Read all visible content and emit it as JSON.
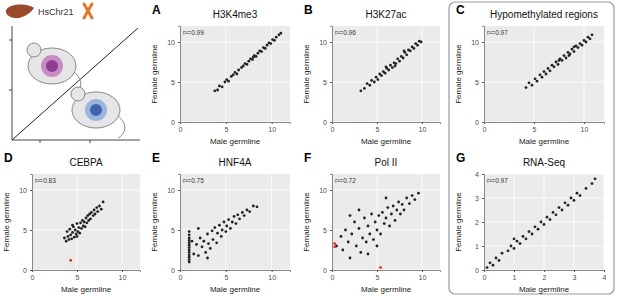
{
  "schematic": {
    "label": "HsChr21"
  },
  "chart_data": [
    {
      "type": "scatter",
      "panel": "A",
      "title": "H3K4me3",
      "annotation": "r²=0.99",
      "x_label": "Male germline",
      "y_label": "Female germline",
      "xlim": [
        0,
        12
      ],
      "ylim": [
        0,
        12
      ],
      "xticks": [
        0,
        5,
        10
      ],
      "yticks": [
        0,
        5,
        10
      ],
      "grid": true,
      "marker": "circle",
      "series": [
        {
          "color": "#222222",
          "x": [
            3.8,
            4.1,
            4.3,
            4.6,
            4.9,
            5.1,
            5.3,
            5.6,
            5.8,
            6.0,
            6.2,
            6.4,
            6.7,
            6.9,
            7.1,
            7.3,
            7.5,
            7.7,
            7.9,
            8.1,
            8.3,
            8.5,
            8.7,
            8.9,
            9.1,
            9.3,
            9.5,
            9.7,
            9.9,
            10.1,
            10.3,
            10.5,
            10.8,
            11.0,
            8.0
          ],
          "values": [
            3.9,
            4.0,
            4.5,
            4.4,
            5.0,
            5.3,
            5.1,
            5.7,
            5.9,
            6.2,
            6.0,
            6.5,
            6.8,
            7.0,
            7.3,
            7.2,
            7.6,
            7.9,
            7.8,
            8.3,
            8.2,
            8.6,
            8.9,
            8.8,
            9.3,
            9.2,
            9.6,
            9.9,
            9.8,
            10.3,
            10.2,
            10.6,
            10.9,
            11.1,
            8.1
          ]
        }
      ]
    },
    {
      "type": "scatter",
      "panel": "B",
      "title": "H3K27ac",
      "annotation": "r²=0.96",
      "x_label": "Male germline",
      "y_label": "Female germline",
      "xlim": [
        0,
        12
      ],
      "ylim": [
        0,
        12
      ],
      "xticks": [
        0,
        5,
        10
      ],
      "yticks": [
        0,
        5,
        10
      ],
      "grid": true,
      "marker": "circle",
      "series": [
        {
          "color": "#222222",
          "x": [
            3.2,
            3.6,
            3.9,
            4.2,
            4.4,
            4.7,
            4.9,
            5.1,
            5.3,
            5.5,
            5.7,
            5.9,
            6.1,
            6.3,
            6.5,
            6.7,
            6.9,
            7.1,
            7.3,
            7.5,
            7.7,
            7.9,
            8.1,
            8.3,
            8.5,
            8.7,
            8.9,
            9.1,
            9.3,
            9.5,
            9.7,
            9.9,
            6.0,
            7.0,
            8.0
          ],
          "values": [
            3.9,
            4.2,
            4.8,
            4.6,
            5.2,
            5.0,
            5.6,
            5.3,
            6.0,
            5.8,
            6.3,
            6.1,
            6.7,
            6.5,
            7.1,
            6.8,
            7.4,
            7.3,
            7.9,
            7.6,
            8.2,
            8.0,
            8.7,
            8.4,
            9.0,
            8.9,
            9.4,
            9.2,
            9.8,
            9.6,
            10.1,
            10.0,
            6.9,
            7.0,
            8.9
          ]
        }
      ]
    },
    {
      "type": "scatter",
      "panel": "C",
      "title": "Hypomethylated regions",
      "annotation": "r²=0.97",
      "x_label": "Male germline",
      "y_label": "Female germline",
      "xlim": [
        0,
        12
      ],
      "ylim": [
        0,
        12
      ],
      "xticks": [
        0,
        5,
        10
      ],
      "yticks": [
        0,
        5,
        10
      ],
      "grid": true,
      "marker": "circle",
      "series": [
        {
          "color": "#222222",
          "x": [
            4.2,
            4.5,
            4.8,
            5.1,
            5.3,
            5.6,
            5.8,
            6.0,
            6.2,
            6.4,
            6.6,
            6.8,
            7.0,
            7.2,
            7.4,
            7.6,
            7.8,
            8.0,
            8.2,
            8.4,
            8.6,
            8.8,
            9.0,
            9.2,
            9.4,
            9.6,
            9.8,
            10.0,
            10.2,
            10.4,
            10.6,
            10.8,
            9.0,
            8.5,
            7.5
          ],
          "values": [
            4.3,
            4.9,
            4.6,
            5.4,
            5.1,
            5.9,
            5.6,
            6.3,
            6.0,
            6.7,
            6.4,
            7.1,
            6.9,
            7.5,
            7.2,
            7.9,
            7.7,
            8.3,
            8.0,
            8.7,
            8.5,
            9.1,
            8.8,
            9.5,
            9.3,
            9.8,
            9.6,
            10.2,
            10.0,
            10.6,
            10.4,
            10.9,
            9.4,
            8.3,
            7.7
          ]
        }
      ]
    },
    {
      "type": "scatter",
      "panel": "D",
      "title": "CEBPA",
      "annotation": "r²=0.83",
      "x_label": "Male germline",
      "y_label": "Female germline",
      "xlim": [
        0,
        12
      ],
      "ylim": [
        0,
        12
      ],
      "xticks": [
        0,
        5,
        10
      ],
      "yticks": [
        0,
        5,
        10
      ],
      "grid": true,
      "marker": "circle",
      "series": [
        {
          "color": "#222222",
          "x": [
            3.6,
            3.8,
            3.9,
            4.0,
            4.1,
            4.2,
            4.3,
            4.4,
            4.5,
            4.6,
            4.7,
            4.8,
            4.9,
            5.0,
            5.1,
            5.2,
            5.3,
            5.4,
            5.5,
            5.6,
            5.7,
            5.8,
            5.9,
            6.0,
            6.1,
            6.2,
            6.3,
            6.4,
            6.5,
            6.6,
            6.8,
            6.9,
            7.0,
            7.2,
            7.3,
            7.5,
            7.7,
            7.9,
            5.0,
            4.5
          ],
          "values": [
            4.0,
            3.6,
            4.8,
            4.2,
            3.8,
            5.1,
            4.4,
            3.9,
            4.7,
            5.4,
            4.1,
            5.0,
            4.5,
            5.8,
            4.8,
            5.3,
            4.6,
            5.9,
            5.2,
            6.2,
            5.5,
            6.0,
            5.4,
            6.5,
            5.9,
            6.8,
            6.2,
            7.0,
            6.4,
            7.2,
            6.8,
            7.5,
            7.0,
            7.8,
            7.3,
            8.0,
            7.6,
            8.5,
            4.2,
            5.6
          ]
        },
        {
          "color": "#e3262a",
          "x": [
            4.3
          ],
          "values": [
            1.2
          ]
        }
      ]
    },
    {
      "type": "scatter",
      "panel": "E",
      "title": "HNF4A",
      "annotation": "r²=0.75",
      "x_label": "Male germline",
      "y_label": "Female germline",
      "xlim": [
        0,
        12
      ],
      "ylim": [
        0,
        12
      ],
      "xticks": [
        0,
        5,
        10
      ],
      "yticks": [
        0,
        5,
        10
      ],
      "grid": true,
      "marker": "circle",
      "series": [
        {
          "color": "#222222",
          "x": [
            1.0,
            1.0,
            1.0,
            1.0,
            1.0,
            1.0,
            1.0,
            1.0,
            1.0,
            1.0,
            1.0,
            1.0,
            1.0,
            1.5,
            1.8,
            2.0,
            2.2,
            2.4,
            2.6,
            2.8,
            3.0,
            3.1,
            3.3,
            3.5,
            3.6,
            3.8,
            4.0,
            4.1,
            4.3,
            4.5,
            4.6,
            4.8,
            5.0,
            5.1,
            5.3,
            5.5,
            5.7,
            5.9,
            6.1,
            6.3,
            6.5,
            6.8,
            7.0,
            7.3,
            7.6,
            8.0,
            8.4,
            2.0,
            3.0,
            1.3
          ],
          "values": [
            1.0,
            1.3,
            1.6,
            1.9,
            2.2,
            2.5,
            2.8,
            3.1,
            3.4,
            3.7,
            4.0,
            4.4,
            4.8,
            2.0,
            3.2,
            1.8,
            4.0,
            2.9,
            3.6,
            2.2,
            4.5,
            3.3,
            2.7,
            4.9,
            3.8,
            5.3,
            3.4,
            4.6,
            5.6,
            4.2,
            5.0,
            6.0,
            4.8,
            5.5,
            6.3,
            5.2,
            6.0,
            6.7,
            5.8,
            6.9,
            6.4,
            7.2,
            6.8,
            7.5,
            7.3,
            8.0,
            7.9,
            5.2,
            1.5,
            3.6
          ]
        }
      ]
    },
    {
      "type": "scatter",
      "panel": "F",
      "title": "Pol II",
      "annotation": "r²=0.72",
      "x_label": "Male germline",
      "y_label": "Female germline",
      "xlim": [
        0,
        12
      ],
      "ylim": [
        0,
        12
      ],
      "xticks": [
        0,
        5,
        10
      ],
      "yticks": [
        0,
        5,
        10
      ],
      "grid": true,
      "marker": "circle",
      "series": [
        {
          "color": "#222222",
          "x": [
            0.5,
            1.0,
            1.2,
            1.5,
            1.8,
            2.0,
            2.2,
            2.5,
            2.7,
            3.0,
            3.2,
            3.4,
            3.6,
            3.8,
            4.0,
            4.2,
            4.4,
            4.6,
            4.8,
            5.0,
            5.2,
            5.4,
            5.6,
            5.8,
            6.0,
            6.2,
            6.4,
            6.6,
            6.8,
            7.0,
            7.2,
            7.4,
            7.6,
            7.8,
            8.0,
            8.3,
            8.6,
            8.9,
            9.2,
            9.6,
            3.0,
            5.0,
            6.0,
            2.0,
            4.0
          ],
          "values": [
            3.0,
            4.2,
            2.5,
            5.0,
            3.5,
            1.5,
            4.5,
            6.0,
            3.0,
            5.2,
            2.2,
            4.0,
            6.5,
            3.5,
            5.5,
            4.5,
            7.0,
            3.8,
            6.0,
            5.0,
            6.8,
            4.5,
            7.2,
            5.8,
            6.5,
            7.8,
            5.5,
            7.0,
            8.0,
            6.2,
            7.5,
            8.5,
            7.0,
            8.2,
            7.5,
            9.0,
            8.3,
            9.3,
            8.8,
            9.6,
            7.5,
            3.0,
            9.0,
            6.8,
            2.0
          ]
        },
        {
          "color": "#e3262a",
          "x": [
            0.3,
            0.3,
            5.4
          ],
          "values": [
            3.3,
            2.9,
            0.3
          ]
        }
      ]
    },
    {
      "type": "scatter",
      "panel": "G",
      "title": "RNA-Seq",
      "annotation": "r²=0.97",
      "x_label": "Male germline",
      "y_label": "Female germline",
      "xlim": [
        0,
        4
      ],
      "ylim": [
        0,
        4
      ],
      "xticks": [
        0,
        1,
        2,
        3,
        4
      ],
      "yticks": [
        0,
        1,
        2,
        3,
        4
      ],
      "grid": true,
      "marker": "circle",
      "series": [
        {
          "color": "#222222",
          "x": [
            0.1,
            0.2,
            0.3,
            0.4,
            0.5,
            0.6,
            0.8,
            0.9,
            1.0,
            1.1,
            1.2,
            1.3,
            1.4,
            1.5,
            1.6,
            1.7,
            1.8,
            1.9,
            2.0,
            2.1,
            2.2,
            2.3,
            2.4,
            2.5,
            2.6,
            2.7,
            2.8,
            2.9,
            3.0,
            3.1,
            3.2,
            3.4,
            3.6,
            3.7,
            1.0
          ],
          "values": [
            0.1,
            0.3,
            0.2,
            0.5,
            0.4,
            0.7,
            0.8,
            1.0,
            0.9,
            1.2,
            1.1,
            1.4,
            1.3,
            1.6,
            1.5,
            1.8,
            1.7,
            2.0,
            1.9,
            2.2,
            2.1,
            2.4,
            2.3,
            2.6,
            2.5,
            2.8,
            2.7,
            3.0,
            2.9,
            3.2,
            3.1,
            3.4,
            3.6,
            3.8,
            1.3
          ]
        }
      ]
    }
  ]
}
